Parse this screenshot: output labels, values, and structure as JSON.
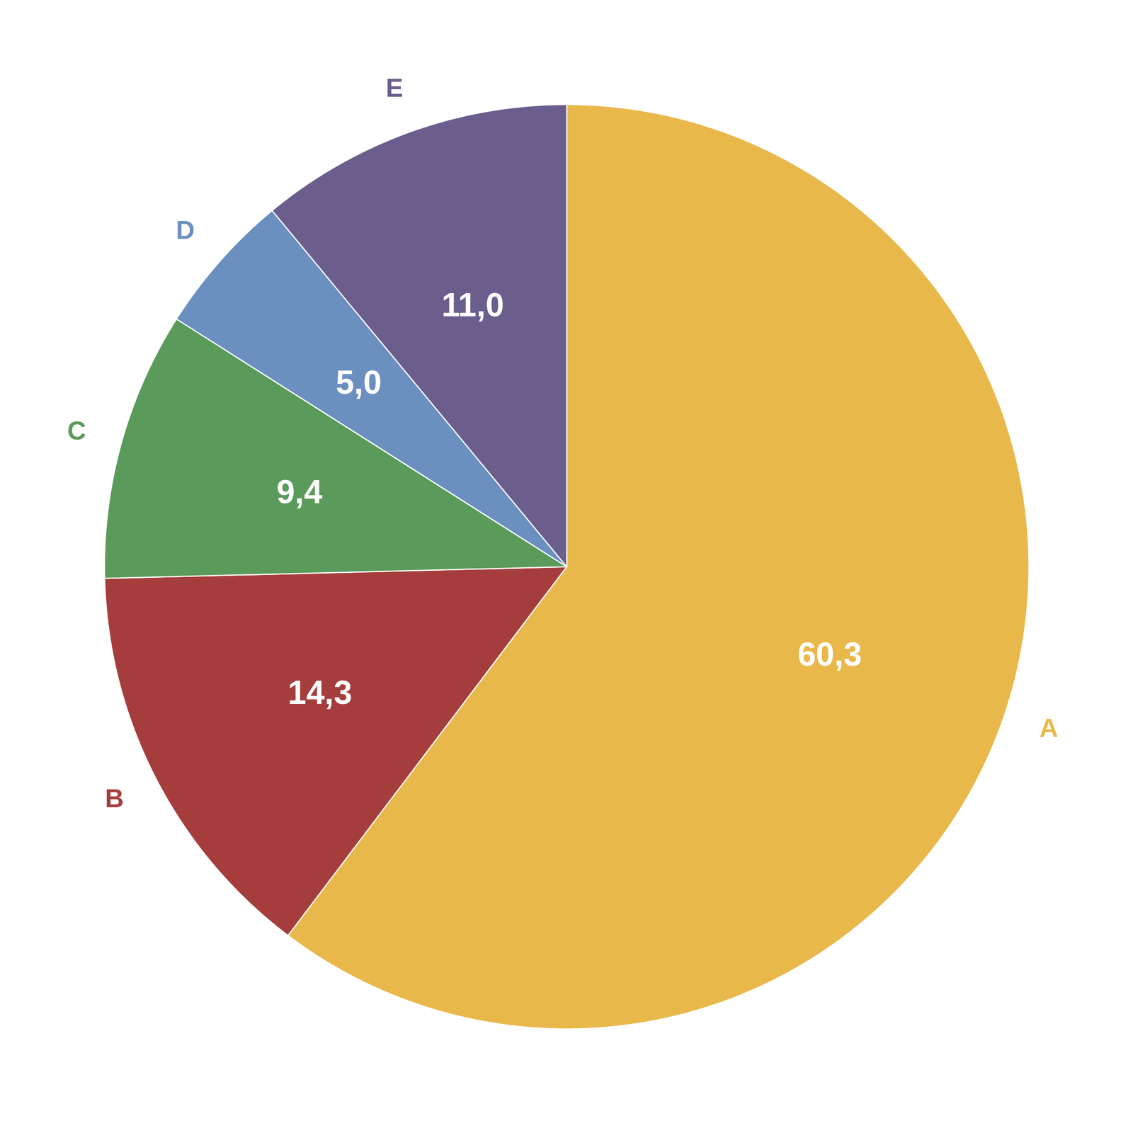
{
  "chart_data": {
    "type": "pie",
    "categories": [
      "A",
      "B",
      "C",
      "D",
      "E"
    ],
    "values": [
      60.3,
      14.3,
      9.4,
      5.0,
      11.0
    ],
    "value_labels": [
      "60,3",
      "14,3",
      "9,4",
      "5,0",
      "11,0"
    ],
    "colors": [
      "#E8B84B",
      "#A63D3D",
      "#5A9A5A",
      "#6B8FBF",
      "#6B5E8C"
    ],
    "data_labels": true
  }
}
